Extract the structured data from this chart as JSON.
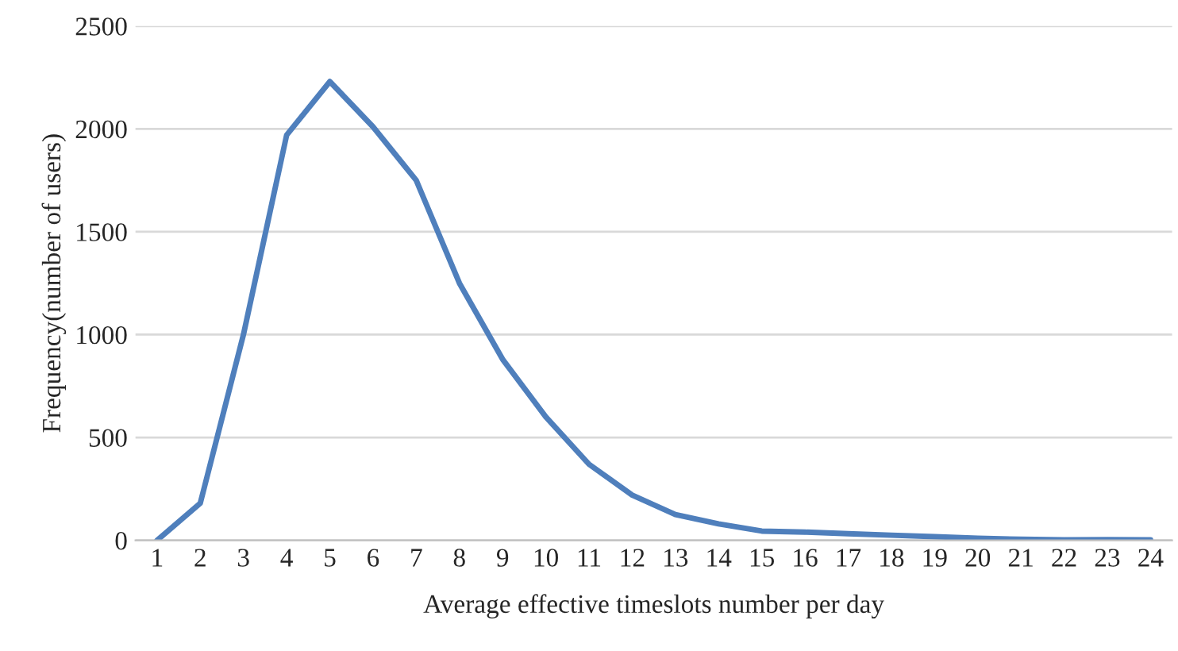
{
  "chart_data": {
    "type": "line",
    "xlabel": "Average effective timeslots number per day",
    "ylabel": "Frequency(number of users)",
    "categories": [
      "1",
      "2",
      "3",
      "4",
      "5",
      "6",
      "7",
      "8",
      "9",
      "10",
      "11",
      "12",
      "13",
      "14",
      "15",
      "16",
      "17",
      "18",
      "19",
      "20",
      "21",
      "22",
      "23",
      "24"
    ],
    "series": [
      {
        "color": "#4f7fbc",
        "values": [
          0,
          180,
          1000,
          1970,
          2230,
          2010,
          1750,
          1250,
          880,
          600,
          370,
          220,
          125,
          80,
          45,
          40,
          32,
          25,
          18,
          10,
          5,
          2,
          3,
          2
        ]
      }
    ],
    "ylim": [
      0,
      2500
    ],
    "yticks": [
      0,
      500,
      1000,
      1500,
      2000,
      2500
    ],
    "grid": "y",
    "legend": false,
    "marker": "none",
    "line_style": "solid"
  }
}
